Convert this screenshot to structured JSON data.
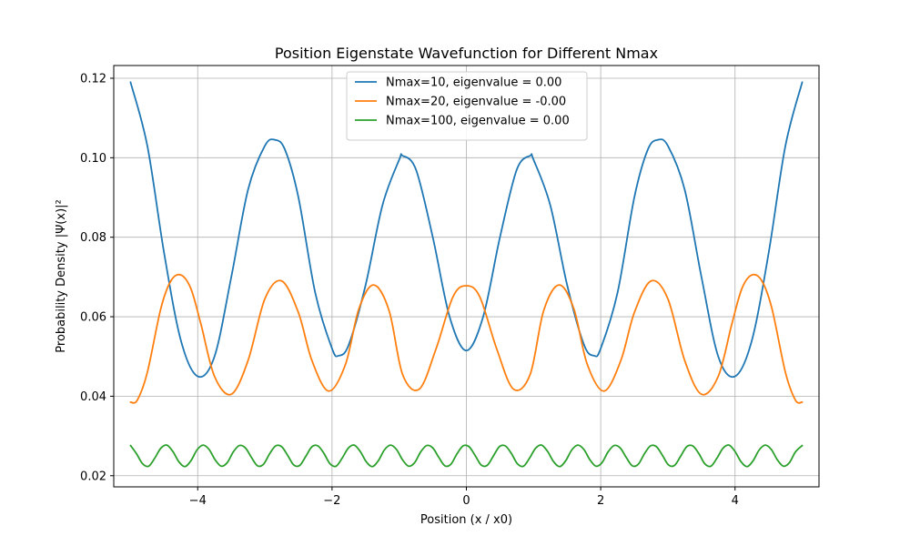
{
  "chart_data": {
    "type": "line",
    "title": "Position Eigenstate Wavefunction for Different Nmax",
    "xlabel": "Position (x / x0)",
    "ylabel": "Probability Density |Ψ(x)|²",
    "xlim": [
      -5.25,
      5.25
    ],
    "ylim": [
      0.0172,
      0.1232
    ],
    "xticks": [
      -4,
      -2,
      0,
      2,
      4
    ],
    "xtick_labels": [
      "−4",
      "−2",
      "0",
      "2",
      "4"
    ],
    "yticks": [
      0.02,
      0.04,
      0.06,
      0.08,
      0.1,
      0.12
    ],
    "ytick_labels": [
      "0.02",
      "0.04",
      "0.06",
      "0.08",
      "0.10",
      "0.12"
    ],
    "grid": true,
    "legend_position": "top-center",
    "series": [
      {
        "name": "Nmax=10, eigenvalue = 0.00",
        "color": "#1f77b4",
        "x": [
          -5.0,
          -4.75,
          -4.5,
          -4.25,
          -4.0,
          -3.75,
          -3.5,
          -3.25,
          -3.0,
          -2.85,
          -2.7,
          -2.5,
          -2.25,
          -2.0,
          -1.9,
          -1.75,
          -1.5,
          -1.25,
          -1.0,
          -0.95,
          -0.75,
          -0.5,
          -0.25,
          0.0,
          0.25,
          0.5,
          0.75,
          0.95,
          1.0,
          1.25,
          1.5,
          1.75,
          1.9,
          2.0,
          2.25,
          2.5,
          2.7,
          2.85,
          3.0,
          3.25,
          3.5,
          3.75,
          4.0,
          4.25,
          4.5,
          4.75,
          5.0
        ],
        "y": [
          0.119,
          0.103,
          0.076,
          0.054,
          0.045,
          0.05,
          0.07,
          0.092,
          0.103,
          0.1045,
          0.102,
          0.09,
          0.066,
          0.052,
          0.0502,
          0.053,
          0.068,
          0.088,
          0.0995,
          0.1005,
          0.097,
          0.08,
          0.06,
          0.0515,
          0.06,
          0.08,
          0.097,
          0.1005,
          0.0995,
          0.088,
          0.068,
          0.053,
          0.0502,
          0.052,
          0.066,
          0.09,
          0.102,
          0.1045,
          0.103,
          0.092,
          0.07,
          0.05,
          0.045,
          0.054,
          0.076,
          0.103,
          0.119
        ]
      },
      {
        "name": "Nmax=20, eigenvalue = -0.00",
        "color": "#ff7f0e",
        "x": [
          -5.0,
          -4.9,
          -4.75,
          -4.55,
          -4.4,
          -4.25,
          -4.1,
          -3.95,
          -3.75,
          -3.5,
          -3.25,
          -3.0,
          -2.75,
          -2.5,
          -2.3,
          -2.05,
          -1.8,
          -1.6,
          -1.38,
          -1.15,
          -0.95,
          -0.7,
          -0.45,
          -0.2,
          0.0,
          0.2,
          0.45,
          0.7,
          0.95,
          1.15,
          1.38,
          1.6,
          1.8,
          2.05,
          2.3,
          2.5,
          2.75,
          3.0,
          3.25,
          3.5,
          3.75,
          3.95,
          4.1,
          4.25,
          4.4,
          4.55,
          4.75,
          4.9,
          5.0
        ],
        "y": [
          0.0385,
          0.039,
          0.046,
          0.062,
          0.069,
          0.0705,
          0.067,
          0.058,
          0.045,
          0.0405,
          0.049,
          0.0645,
          0.069,
          0.061,
          0.049,
          0.0413,
          0.048,
          0.062,
          0.068,
          0.0615,
          0.0455,
          0.0418,
          0.052,
          0.065,
          0.0678,
          0.065,
          0.052,
          0.0418,
          0.0455,
          0.0615,
          0.068,
          0.062,
          0.048,
          0.0413,
          0.049,
          0.061,
          0.069,
          0.0645,
          0.049,
          0.0405,
          0.045,
          0.058,
          0.067,
          0.0705,
          0.069,
          0.062,
          0.046,
          0.039,
          0.0385
        ]
      },
      {
        "name": "Nmax=100, eigenvalue = 0.00",
        "color": "#2ca02c",
        "x": [
          -5.0,
          -4.91,
          -4.82,
          -4.73,
          -4.64,
          -4.55,
          -4.46,
          -4.37,
          -4.28,
          -4.19,
          -4.1,
          -4.01,
          -3.92,
          -3.83,
          -3.74,
          -3.65,
          -3.56,
          -3.47,
          -3.38,
          -3.29,
          -3.2,
          -3.11,
          -3.02,
          -2.93,
          -2.84,
          -2.75,
          -2.66,
          -2.57,
          -2.48,
          -2.39,
          -2.3,
          -2.21,
          -2.12,
          -2.03,
          -1.94,
          -1.85,
          -1.76,
          -1.67,
          -1.58,
          -1.49,
          -1.4,
          -1.31,
          -1.22,
          -1.13,
          -1.04,
          -0.95,
          -0.86,
          -0.77,
          -0.68,
          -0.59,
          -0.5,
          -0.41,
          -0.32,
          -0.23,
          -0.14,
          -0.05,
          0.04,
          0.13,
          0.22,
          0.31,
          0.4,
          0.49,
          0.58,
          0.67,
          0.76,
          0.85,
          0.94,
          1.03,
          1.12,
          1.21,
          1.3,
          1.39,
          1.48,
          1.57,
          1.66,
          1.75,
          1.84,
          1.93,
          2.02,
          2.11,
          2.2,
          2.29,
          2.38,
          2.47,
          2.56,
          2.65,
          2.74,
          2.83,
          2.92,
          3.01,
          3.1,
          3.19,
          3.28,
          3.37,
          3.46,
          3.55,
          3.64,
          3.73,
          3.82,
          3.91,
          4.0,
          4.09,
          4.18,
          4.27,
          4.36,
          4.45,
          4.54,
          4.63,
          4.72,
          4.81,
          4.9,
          5.0
        ],
        "y": [
          0.0276,
          0.0255,
          0.023,
          0.0224,
          0.0244,
          0.0269,
          0.0277,
          0.0261,
          0.0235,
          0.0223,
          0.0238,
          0.0265,
          0.0277,
          0.0266,
          0.024,
          0.0224,
          0.0233,
          0.026,
          0.0276,
          0.027,
          0.0246,
          0.0225,
          0.0229,
          0.0255,
          0.0275,
          0.0273,
          0.0251,
          0.0227,
          0.0226,
          0.0249,
          0.0273,
          0.0275,
          0.0256,
          0.023,
          0.0224,
          0.0244,
          0.0269,
          0.0277,
          0.0261,
          0.0235,
          0.0223,
          0.0238,
          0.0265,
          0.0277,
          0.0266,
          0.024,
          0.0224,
          0.0233,
          0.026,
          0.0276,
          0.027,
          0.0246,
          0.0225,
          0.0229,
          0.0255,
          0.0275,
          0.0273,
          0.0251,
          0.0227,
          0.0226,
          0.0249,
          0.0273,
          0.0275,
          0.0256,
          0.023,
          0.0224,
          0.0244,
          0.0269,
          0.0277,
          0.0261,
          0.0235,
          0.0223,
          0.0238,
          0.0265,
          0.0277,
          0.0266,
          0.024,
          0.0224,
          0.0233,
          0.026,
          0.0276,
          0.027,
          0.0246,
          0.0225,
          0.0229,
          0.0255,
          0.0275,
          0.0273,
          0.0251,
          0.0227,
          0.0226,
          0.0249,
          0.0273,
          0.0275,
          0.0256,
          0.023,
          0.0224,
          0.0244,
          0.0269,
          0.0277,
          0.0261,
          0.0235,
          0.0223,
          0.0238,
          0.0265,
          0.0277,
          0.0266,
          0.024,
          0.0224,
          0.0233,
          0.026,
          0.0276
        ]
      }
    ]
  }
}
